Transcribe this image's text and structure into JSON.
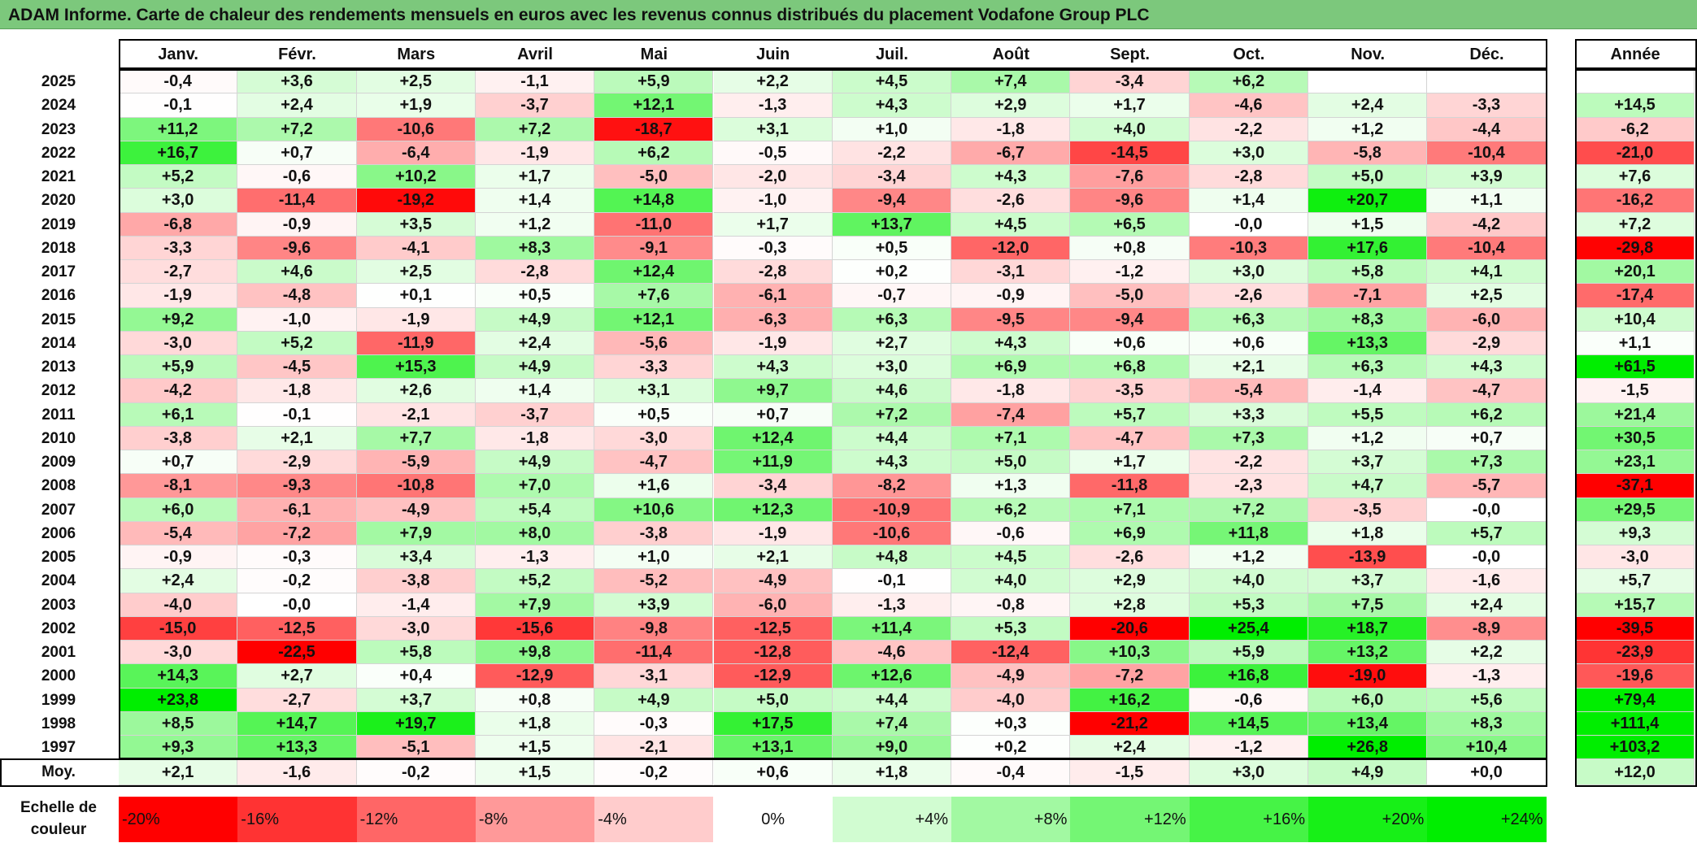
{
  "title": "ADAM Informe. Carte de chaleur des rendements mensuels en euros avec les revenus connus distribués du placement Vodafone Group PLC",
  "colors": {
    "title_bg": "#7cc87c",
    "negative_max": "#ff0000",
    "neutral": "#ffffff",
    "positive_max": "#00ee00"
  },
  "chart_data": {
    "type": "heatmap",
    "title": "ADAM Informe. Carte de chaleur des rendements mensuels en euros avec les revenus connus distribués du placement Vodafone Group PLC",
    "months": [
      "Janv.",
      "Févr.",
      "Mars",
      "Avril",
      "Mai",
      "Juin",
      "Juil.",
      "Août",
      "Sept.",
      "Oct.",
      "Nov.",
      "Déc."
    ],
    "year_header": "Année",
    "rows": [
      {
        "year": "2025",
        "values": [
          "-0,4",
          "+3,6",
          "+2,5",
          "-1,1",
          "+5,9",
          "+2,2",
          "+4,5",
          "+7,4",
          "-3,4",
          "+6,2",
          "",
          ""
        ],
        "annual": ""
      },
      {
        "year": "2024",
        "values": [
          "-0,1",
          "+2,4",
          "+1,9",
          "-3,7",
          "+12,1",
          "-1,3",
          "+4,3",
          "+2,9",
          "+1,7",
          "-4,6",
          "+2,4",
          "-3,3"
        ],
        "annual": "+14,5"
      },
      {
        "year": "2023",
        "values": [
          "+11,2",
          "+7,2",
          "-10,6",
          "+7,2",
          "-18,7",
          "+3,1",
          "+1,0",
          "-1,8",
          "+4,0",
          "-2,2",
          "+1,2",
          "-4,4"
        ],
        "annual": "-6,2"
      },
      {
        "year": "2022",
        "values": [
          "+16,7",
          "+0,7",
          "-6,4",
          "-1,9",
          "+6,2",
          "-0,5",
          "-2,2",
          "-6,7",
          "-14,5",
          "+3,0",
          "-5,8",
          "-10,4"
        ],
        "annual": "-21,0"
      },
      {
        "year": "2021",
        "values": [
          "+5,2",
          "-0,6",
          "+10,2",
          "+1,7",
          "-5,0",
          "-2,0",
          "-3,4",
          "+4,3",
          "-7,6",
          "-2,8",
          "+5,0",
          "+3,9"
        ],
        "annual": "+7,6"
      },
      {
        "year": "2020",
        "values": [
          "+3,0",
          "-11,4",
          "-19,2",
          "+1,4",
          "+14,8",
          "-1,0",
          "-9,4",
          "-2,6",
          "-9,6",
          "+1,4",
          "+20,7",
          "+1,1"
        ],
        "annual": "-16,2"
      },
      {
        "year": "2019",
        "values": [
          "-6,8",
          "-0,9",
          "+3,5",
          "+1,2",
          "-11,0",
          "+1,7",
          "+13,7",
          "+4,5",
          "+6,5",
          "-0,0",
          "+1,5",
          "-4,2"
        ],
        "annual": "+7,2"
      },
      {
        "year": "2018",
        "values": [
          "-3,3",
          "-9,6",
          "-4,1",
          "+8,3",
          "-9,1",
          "-0,3",
          "+0,5",
          "-12,0",
          "+0,8",
          "-10,3",
          "+17,6",
          "-10,4"
        ],
        "annual": "-29,8"
      },
      {
        "year": "2017",
        "values": [
          "-2,7",
          "+4,6",
          "+2,5",
          "-2,8",
          "+12,4",
          "-2,8",
          "+0,2",
          "-3,1",
          "-1,2",
          "+3,0",
          "+5,8",
          "+4,1"
        ],
        "annual": "+20,1"
      },
      {
        "year": "2016",
        "values": [
          "-1,9",
          "-4,8",
          "+0,1",
          "+0,5",
          "+7,6",
          "-6,1",
          "-0,7",
          "-0,9",
          "-5,0",
          "-2,6",
          "-7,1",
          "+2,5"
        ],
        "annual": "-17,4"
      },
      {
        "year": "2015",
        "values": [
          "+9,2",
          "-1,0",
          "-1,9",
          "+4,9",
          "+12,1",
          "-6,3",
          "+6,3",
          "-9,5",
          "-9,4",
          "+6,3",
          "+8,3",
          "-6,0"
        ],
        "annual": "+10,4"
      },
      {
        "year": "2014",
        "values": [
          "-3,0",
          "+5,2",
          "-11,9",
          "+2,4",
          "-5,6",
          "-1,9",
          "+2,7",
          "+4,3",
          "+0,6",
          "+0,6",
          "+13,3",
          "-2,9"
        ],
        "annual": "+1,1"
      },
      {
        "year": "2013",
        "values": [
          "+5,9",
          "-4,5",
          "+15,3",
          "+4,9",
          "-3,3",
          "+4,3",
          "+3,0",
          "+6,9",
          "+6,8",
          "+2,1",
          "+6,3",
          "+4,3"
        ],
        "annual": "+61,5"
      },
      {
        "year": "2012",
        "values": [
          "-4,2",
          "-1,8",
          "+2,6",
          "+1,4",
          "+3,1",
          "+9,7",
          "+4,6",
          "-1,8",
          "-3,5",
          "-5,4",
          "-1,4",
          "-4,7"
        ],
        "annual": "-1,5"
      },
      {
        "year": "2011",
        "values": [
          "+6,1",
          "-0,1",
          "-2,1",
          "-3,7",
          "+0,5",
          "+0,7",
          "+7,2",
          "-7,4",
          "+5,7",
          "+3,3",
          "+5,5",
          "+6,2"
        ],
        "annual": "+21,4"
      },
      {
        "year": "2010",
        "values": [
          "-3,8",
          "+2,1",
          "+7,7",
          "-1,8",
          "-3,0",
          "+12,4",
          "+4,4",
          "+7,1",
          "-4,7",
          "+7,3",
          "+1,2",
          "+0,7"
        ],
        "annual": "+30,5"
      },
      {
        "year": "2009",
        "values": [
          "+0,7",
          "-2,9",
          "-5,9",
          "+4,9",
          "-4,7",
          "+11,9",
          "+4,3",
          "+5,0",
          "+1,7",
          "-2,2",
          "+3,7",
          "+7,3"
        ],
        "annual": "+23,1"
      },
      {
        "year": "2008",
        "values": [
          "-8,1",
          "-9,3",
          "-10,8",
          "+7,0",
          "+1,6",
          "-3,4",
          "-8,2",
          "+1,3",
          "-11,8",
          "-2,3",
          "+4,7",
          "-5,7"
        ],
        "annual": "-37,1"
      },
      {
        "year": "2007",
        "values": [
          "+6,0",
          "-6,1",
          "-4,9",
          "+5,4",
          "+10,6",
          "+12,3",
          "-10,9",
          "+6,2",
          "+7,1",
          "+7,2",
          "-3,5",
          "-0,0"
        ],
        "annual": "+29,5"
      },
      {
        "year": "2006",
        "values": [
          "-5,4",
          "-7,2",
          "+7,9",
          "+8,0",
          "-3,8",
          "-1,9",
          "-10,6",
          "-0,6",
          "+6,9",
          "+11,8",
          "+1,8",
          "+5,7"
        ],
        "annual": "+9,3"
      },
      {
        "year": "2005",
        "values": [
          "-0,9",
          "-0,3",
          "+3,4",
          "-1,3",
          "+1,0",
          "+2,1",
          "+4,8",
          "+4,5",
          "-2,6",
          "+1,2",
          "-13,9",
          "-0,0"
        ],
        "annual": "-3,0"
      },
      {
        "year": "2004",
        "values": [
          "+2,4",
          "-0,2",
          "-3,8",
          "+5,2",
          "-5,2",
          "-4,9",
          "-0,1",
          "+4,0",
          "+2,9",
          "+4,0",
          "+3,7",
          "-1,6"
        ],
        "annual": "+5,7"
      },
      {
        "year": "2003",
        "values": [
          "-4,0",
          "-0,0",
          "-1,4",
          "+7,9",
          "+3,9",
          "-6,0",
          "-1,3",
          "-0,8",
          "+2,8",
          "+5,3",
          "+7,5",
          "+2,4"
        ],
        "annual": "+15,7"
      },
      {
        "year": "2002",
        "values": [
          "-15,0",
          "-12,5",
          "-3,0",
          "-15,6",
          "-9,8",
          "-12,5",
          "+11,4",
          "+5,3",
          "-20,6",
          "+25,4",
          "+18,7",
          "-8,9"
        ],
        "annual": "-39,5"
      },
      {
        "year": "2001",
        "values": [
          "-3,0",
          "-22,5",
          "+5,8",
          "+9,8",
          "-11,4",
          "-12,8",
          "-4,6",
          "-12,4",
          "+10,3",
          "+5,9",
          "+13,2",
          "+2,2"
        ],
        "annual": "-23,9"
      },
      {
        "year": "2000",
        "values": [
          "+14,3",
          "+2,7",
          "+0,4",
          "-12,9",
          "-3,1",
          "-12,9",
          "+12,6",
          "-4,9",
          "-7,2",
          "+16,8",
          "-19,0",
          "-1,3"
        ],
        "annual": "-19,6"
      },
      {
        "year": "1999",
        "values": [
          "+23,8",
          "-2,7",
          "+3,7",
          "+0,8",
          "+4,9",
          "+5,0",
          "+4,4",
          "-4,0",
          "+16,2",
          "-0,6",
          "+6,0",
          "+5,6"
        ],
        "annual": "+79,4"
      },
      {
        "year": "1998",
        "values": [
          "+8,5",
          "+14,7",
          "+19,7",
          "+1,8",
          "-0,3",
          "+17,5",
          "+7,4",
          "+0,3",
          "-21,2",
          "+14,5",
          "+13,4",
          "+8,3"
        ],
        "annual": "+111,4"
      },
      {
        "year": "1997",
        "values": [
          "+9,3",
          "+13,3",
          "-5,1",
          "+1,5",
          "-2,1",
          "+13,1",
          "+9,0",
          "+0,2",
          "+2,4",
          "-1,2",
          "+26,8",
          "+10,4"
        ],
        "annual": "+103,2"
      }
    ],
    "average": {
      "label": "Moy.",
      "values": [
        "+2,1",
        "-1,6",
        "-0,2",
        "+1,5",
        "-0,2",
        "+0,6",
        "+1,8",
        "-0,4",
        "-1,5",
        "+3,0",
        "+4,9",
        "+0,0"
      ],
      "annual": "+12,0"
    },
    "color_scale": {
      "label_line1": "Echelle de",
      "label_line2": "couleur",
      "steps": [
        {
          "label": "-20%",
          "value": -20
        },
        {
          "label": "-16%",
          "value": -16
        },
        {
          "label": "-12%",
          "value": -12
        },
        {
          "label": "-8%",
          "value": -8
        },
        {
          "label": "-4%",
          "value": -4
        },
        {
          "label": "0%",
          "value": 0
        },
        {
          "label": "+4%",
          "value": 4
        },
        {
          "label": "+8%",
          "value": 8
        },
        {
          "label": "+12%",
          "value": 12
        },
        {
          "label": "+16%",
          "value": 16
        },
        {
          "label": "+20%",
          "value": 20
        },
        {
          "label": "+24%",
          "value": 24
        }
      ]
    }
  }
}
